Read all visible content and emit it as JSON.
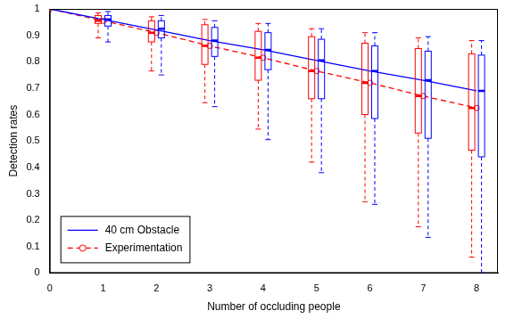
{
  "chart_data": {
    "type": "boxplot",
    "x_label": "Number of occluding people",
    "y_label": "Detection rates",
    "x": [
      0,
      1,
      2,
      3,
      4,
      5,
      6,
      7,
      8
    ],
    "xlim": [
      0,
      8.4
    ],
    "xticks": [
      0,
      1,
      2,
      3,
      4,
      5,
      6,
      7,
      8
    ],
    "ylim": [
      0,
      1
    ],
    "yticks": [
      0,
      0.1,
      0.2,
      0.3,
      0.4,
      0.5,
      0.6,
      0.7,
      0.8,
      0.9,
      1
    ],
    "grid": false,
    "legend": "lower left",
    "series": [
      {
        "name": "40 cm Obstacle",
        "color": "#0000ff",
        "line_style": "solid",
        "values": [
          1,
          0.96,
          0.92,
          0.88,
          0.845,
          0.805,
          0.765,
          0.73,
          0.69
        ],
        "boxes": {
          "x": [
            1,
            2,
            3,
            4,
            5,
            6,
            7,
            8
          ],
          "min": [
            0.875,
            0.75,
            0.63,
            0.505,
            0.38,
            0.26,
            0.135,
            0.0
          ],
          "q1": [
            0.935,
            0.89,
            0.82,
            0.77,
            0.66,
            0.585,
            0.51,
            0.44
          ],
          "median": [
            0.96,
            0.925,
            0.88,
            0.845,
            0.805,
            0.765,
            0.73,
            0.69
          ],
          "q3": [
            0.975,
            0.955,
            0.93,
            0.91,
            0.885,
            0.86,
            0.84,
            0.825
          ],
          "max": [
            0.99,
            0.975,
            0.955,
            0.945,
            0.925,
            0.91,
            0.895,
            0.88
          ]
        }
      },
      {
        "name": "Experimentation",
        "color": "#ff0000",
        "line_style": "dashed",
        "marker": "circle",
        "values": [
          1,
          0.955,
          0.91,
          0.86,
          0.815,
          0.765,
          0.72,
          0.67,
          0.625
        ],
        "boxes": {
          "x": [
            1,
            2,
            3,
            4,
            5,
            6,
            7,
            8
          ],
          "min": [
            0.89,
            0.765,
            0.645,
            0.545,
            0.42,
            0.27,
            0.175,
            0.06
          ],
          "q1": [
            0.945,
            0.875,
            0.79,
            0.73,
            0.66,
            0.6,
            0.53,
            0.465
          ],
          "median": [
            0.955,
            0.91,
            0.86,
            0.815,
            0.765,
            0.72,
            0.67,
            0.625
          ],
          "q3": [
            0.975,
            0.955,
            0.94,
            0.915,
            0.895,
            0.87,
            0.85,
            0.83
          ],
          "max": [
            0.985,
            0.97,
            0.96,
            0.945,
            0.925,
            0.91,
            0.89,
            0.88
          ]
        }
      }
    ]
  }
}
